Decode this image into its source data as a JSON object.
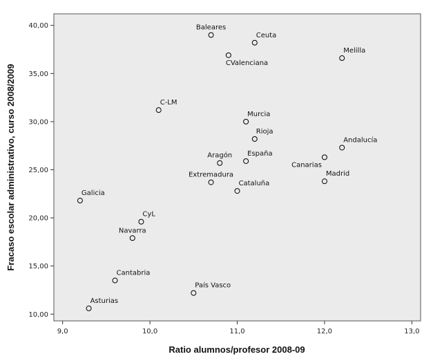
{
  "chart_data": {
    "type": "scatter",
    "xlabel": "Ratio alumnos/profesor 2008-09",
    "ylabel": "Fracaso escolar administrativo, curso 2008/2009",
    "xlim": [
      8.9,
      13.1
    ],
    "ylim": [
      9.3,
      41.2
    ],
    "x_ticks": [
      9.0,
      10.0,
      11.0,
      12.0,
      13.0
    ],
    "x_tick_labels": [
      "9,0",
      "10,0",
      "11,0",
      "12,0",
      "13,0"
    ],
    "y_ticks": [
      10,
      15,
      20,
      25,
      30,
      35,
      40
    ],
    "y_tick_labels": [
      "10,00",
      "15,00",
      "20,00",
      "25,00",
      "30,00",
      "35,00",
      "40,00"
    ],
    "grid": false,
    "plot_background": "#ebebeb",
    "marker_color": "#000000",
    "points": [
      {
        "label": "Baleares",
        "x": 10.7,
        "y": 39.0,
        "label_pos": "above"
      },
      {
        "label": "Ceuta",
        "x": 11.2,
        "y": 38.2,
        "label_pos": "above-right"
      },
      {
        "label": "CValenciana",
        "x": 10.9,
        "y": 36.9,
        "label_pos": "below-right"
      },
      {
        "label": "Melilla",
        "x": 12.2,
        "y": 36.6,
        "label_pos": "above-right"
      },
      {
        "label": "C-LM",
        "x": 10.1,
        "y": 31.2,
        "label_pos": "above-right"
      },
      {
        "label": "Murcia",
        "x": 11.1,
        "y": 30.0,
        "label_pos": "above-right"
      },
      {
        "label": "Rioja",
        "x": 11.2,
        "y": 28.2,
        "label_pos": "above-right"
      },
      {
        "label": "Andalucía",
        "x": 12.2,
        "y": 27.3,
        "label_pos": "above-right"
      },
      {
        "label": "Canarias",
        "x": 12.0,
        "y": 26.3,
        "label_pos": "below-left"
      },
      {
        "label": "España",
        "x": 11.1,
        "y": 25.9,
        "label_pos": "above-right"
      },
      {
        "label": "Aragón",
        "x": 10.8,
        "y": 25.7,
        "label_pos": "above"
      },
      {
        "label": "Madrid",
        "x": 12.0,
        "y": 23.8,
        "label_pos": "above-right"
      },
      {
        "label": "Extremadura",
        "x": 10.7,
        "y": 23.7,
        "label_pos": "above"
      },
      {
        "label": "Cataluña",
        "x": 11.0,
        "y": 22.8,
        "label_pos": "above-right"
      },
      {
        "label": "Galicia",
        "x": 9.2,
        "y": 21.8,
        "label_pos": "above-right"
      },
      {
        "label": "CyL",
        "x": 9.9,
        "y": 19.6,
        "label_pos": "above-right"
      },
      {
        "label": "Navarra",
        "x": 9.8,
        "y": 17.9,
        "label_pos": "above"
      },
      {
        "label": "Cantabria",
        "x": 9.6,
        "y": 13.5,
        "label_pos": "above-right"
      },
      {
        "label": "País Vasco",
        "x": 10.5,
        "y": 12.2,
        "label_pos": "above-right"
      },
      {
        "label": "Asturias",
        "x": 9.3,
        "y": 10.6,
        "label_pos": "above-right"
      }
    ]
  }
}
